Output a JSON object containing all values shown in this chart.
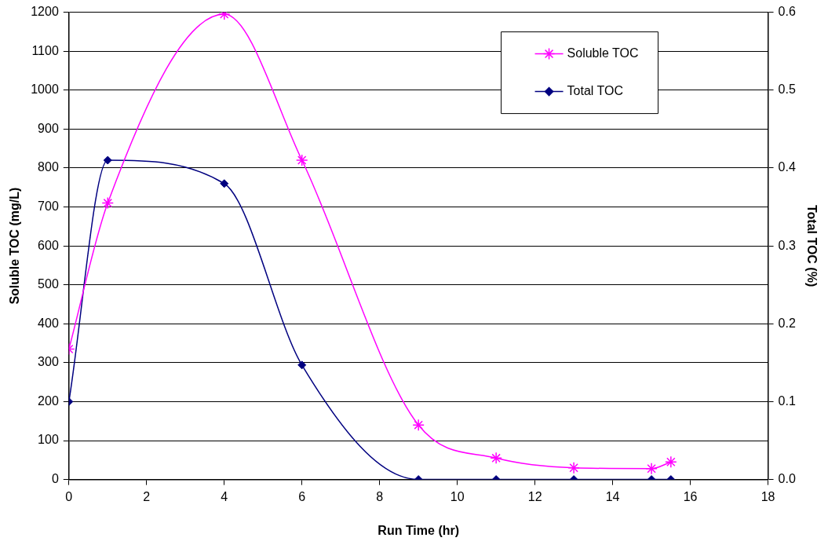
{
  "chart_data": {
    "type": "line",
    "xlabel": "Run Time (hr)",
    "ylabel": "Soluble TOC (mg/L)",
    "y2label": "Total TOC (%)",
    "x": [
      0,
      1,
      4,
      6,
      9,
      11,
      13,
      15,
      15.5
    ],
    "series": [
      {
        "name": "Soluble TOC",
        "color": "#ff00ff",
        "marker": "cross",
        "values": [
          335,
          710,
          1195,
          820,
          140,
          55,
          30,
          28,
          45
        ]
      },
      {
        "name": "Total TOC",
        "color": "#000080",
        "marker": "diamond",
        "axis": "y2",
        "values": [
          0.1,
          0.41,
          0.38,
          0.147,
          0,
          0,
          0,
          0,
          0
        ]
      }
    ],
    "xlim": [
      0,
      18
    ],
    "xticks": [
      0,
      2,
      4,
      6,
      8,
      10,
      12,
      14,
      16,
      18
    ],
    "ylim": [
      0,
      1200
    ],
    "yticks": [
      0,
      100,
      200,
      300,
      400,
      500,
      600,
      700,
      800,
      900,
      1000,
      1100,
      1200
    ],
    "y2lim": [
      0,
      0.6
    ],
    "y2ticks": [
      {
        "value": 0,
        "label": "0.0"
      },
      0.1,
      0.2,
      0.3,
      0.4,
      0.5,
      0.6
    ],
    "grid": "y",
    "legend": "top right"
  }
}
